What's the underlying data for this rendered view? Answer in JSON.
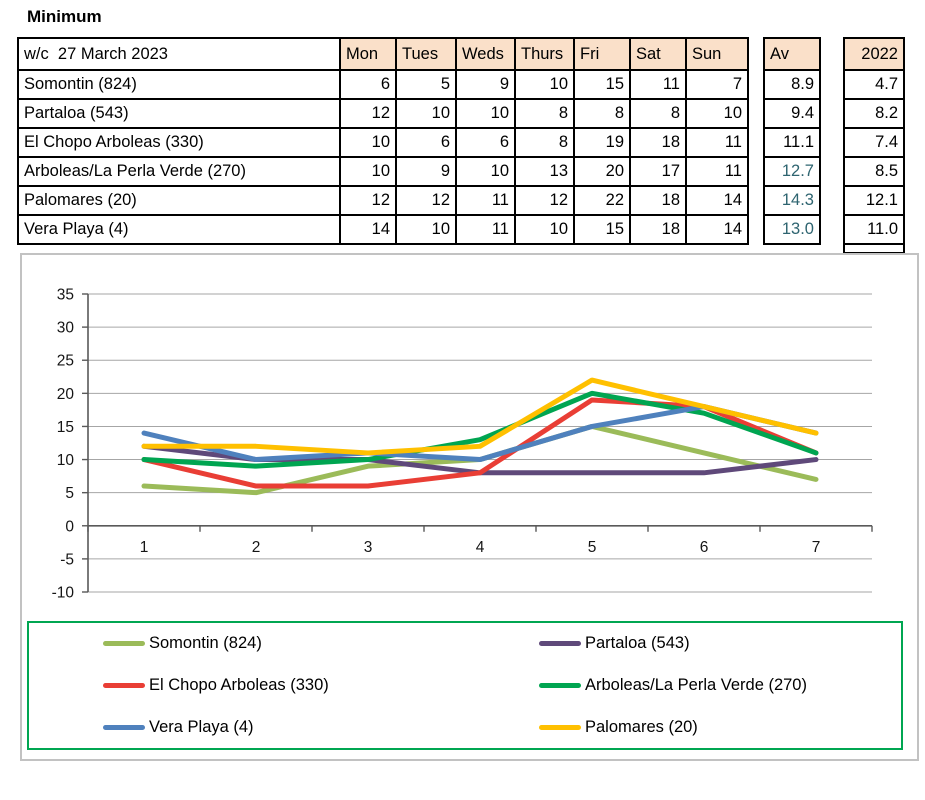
{
  "title": "Minimum",
  "table": {
    "week_label": "w/c  27 March 2023",
    "day_headers": [
      "Mon",
      "Tues",
      "Weds",
      "Thurs",
      "Fri",
      "Sat",
      "Sun"
    ],
    "av_header": "Av",
    "year_header": "2022",
    "rows": [
      {
        "name": "Somontin (824)",
        "values": [
          6,
          5,
          9,
          10,
          15,
          11,
          7
        ],
        "av": "8.9",
        "av_highlight": false,
        "prev_year": "4.7"
      },
      {
        "name": "Partaloa (543)",
        "values": [
          12,
          10,
          10,
          8,
          8,
          8,
          10
        ],
        "av": "9.4",
        "av_highlight": false,
        "prev_year": "8.2"
      },
      {
        "name": "El Chopo Arboleas (330)",
        "values": [
          10,
          6,
          6,
          8,
          19,
          18,
          11
        ],
        "av": "11.1",
        "av_highlight": false,
        "prev_year": "7.4"
      },
      {
        "name": "Arboleas/La Perla Verde (270)",
        "values": [
          10,
          9,
          10,
          13,
          20,
          17,
          11
        ],
        "av": "12.7",
        "av_highlight": true,
        "prev_year": "8.5"
      },
      {
        "name": "Palomares (20)",
        "values": [
          12,
          12,
          11,
          12,
          22,
          18,
          14
        ],
        "av": "14.3",
        "av_highlight": true,
        "prev_year": "12.1"
      },
      {
        "name": "Vera Playa (4)",
        "values": [
          14,
          10,
          11,
          10,
          15,
          18,
          14
        ],
        "av": "13.0",
        "av_highlight": true,
        "prev_year": "11.0"
      }
    ]
  },
  "colors": {
    "header_fill": "#FAE0C9",
    "av_highlight_text": "#2E6470",
    "grid_line": "#A6A6A6",
    "axis_line": "#595959",
    "chart_border": "#C2C2C2",
    "legend_border": "#00A651",
    "table_border": "#000000"
  },
  "chart_data": {
    "type": "line",
    "x": [
      1,
      2,
      3,
      4,
      5,
      6,
      7
    ],
    "series": [
      {
        "name": "Somontin (824)",
        "color": "#9BBB59",
        "values": [
          6,
          5,
          9,
          10,
          15,
          11,
          7
        ]
      },
      {
        "name": "Partaloa (543)",
        "color": "#5F497A",
        "values": [
          12,
          10,
          10,
          8,
          8,
          8,
          10
        ]
      },
      {
        "name": "El Chopo Arboleas (330)",
        "color": "#E93E35",
        "values": [
          10,
          6,
          6,
          8,
          19,
          18,
          11
        ]
      },
      {
        "name": "Arboleas/La Perla Verde (270)",
        "color": "#00A551",
        "values": [
          10,
          9,
          10,
          13,
          20,
          17,
          11
        ]
      },
      {
        "name": "Vera Playa (4)",
        "color": "#4F81BD",
        "values": [
          14,
          10,
          11,
          10,
          15,
          18,
          14
        ]
      },
      {
        "name": "Palomares (20)",
        "color": "#FFC000",
        "values": [
          12,
          12,
          11,
          12,
          22,
          18,
          14
        ]
      }
    ],
    "title": "",
    "xlabel": "",
    "ylabel": "",
    "ylim": [
      -10,
      35
    ],
    "ytick_step": 5,
    "yticks": [
      35,
      30,
      25,
      20,
      15,
      10,
      5,
      0,
      -5,
      -10
    ],
    "grid": true,
    "legend_position": "bottom",
    "line_width": 5
  }
}
